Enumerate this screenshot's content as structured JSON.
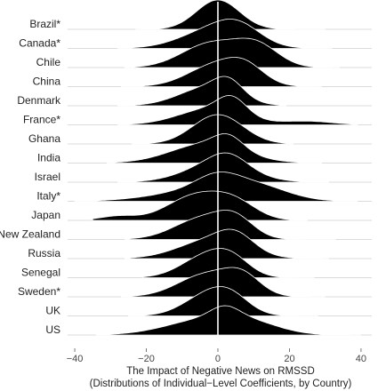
{
  "chart_data": {
    "type": "ridgeline",
    "title": "",
    "xlabel": "The Impact of Negative News on RMSSD",
    "xlabel_line2": "(Distributions of Individual−Level Coefficients, by Country)",
    "ylabel": "",
    "xlim": [
      -42,
      43
    ],
    "x_ticks": [
      -40,
      -20,
      0,
      20,
      40
    ],
    "x_tick_labels": [
      "−40",
      "−20",
      "0",
      "20",
      "40"
    ],
    "reference_line_x": 0,
    "grid": false,
    "fill_color": "#000000",
    "series": [
      {
        "name": "Brazil*",
        "components": [
          [
            0,
            6,
            1.0
          ]
        ],
        "range": [
          -23,
          30
        ]
      },
      {
        "name": "Canada*",
        "components": [
          [
            -1,
            9,
            0.55
          ],
          [
            6,
            6,
            0.4
          ]
        ],
        "range": [
          -28,
          32
        ]
      },
      {
        "name": "Chile",
        "components": [
          [
            -2,
            8,
            0.7
          ],
          [
            11,
            6,
            0.6
          ]
        ],
        "range": [
          -26,
          34
        ]
      },
      {
        "name": "China",
        "components": [
          [
            0,
            8,
            0.8
          ],
          [
            8,
            5,
            0.45
          ]
        ],
        "range": [
          -27,
          29
        ]
      },
      {
        "name": "Denmark",
        "components": [
          [
            -3,
            8,
            0.6
          ],
          [
            3,
            4,
            0.5
          ]
        ],
        "range": [
          -28,
          19
        ]
      },
      {
        "name": "France*",
        "components": [
          [
            -2,
            9,
            0.45
          ],
          [
            4,
            4,
            0.45
          ],
          [
            25,
            7,
            0.1
          ]
        ],
        "range": [
          -28,
          39
        ]
      },
      {
        "name": "Ghana",
        "components": [
          [
            0,
            7,
            0.9
          ]
        ],
        "range": [
          -24,
          21
        ]
      },
      {
        "name": "India",
        "components": [
          [
            -3,
            10,
            0.55
          ],
          [
            3,
            4,
            0.35
          ]
        ],
        "range": [
          -31,
          29
        ]
      },
      {
        "name": "Israel",
        "components": [
          [
            0,
            9,
            0.6
          ],
          [
            3,
            5,
            0.35
          ]
        ],
        "range": [
          -28,
          31
        ]
      },
      {
        "name": "Italy*",
        "components": [
          [
            -3,
            13,
            0.35
          ],
          [
            0,
            6,
            0.4
          ],
          [
            12,
            8,
            0.3
          ]
        ],
        "range": [
          -40,
          39
        ]
      },
      {
        "name": "Japan",
        "components": [
          [
            -6,
            8,
            0.6
          ],
          [
            5,
            6,
            0.35
          ],
          [
            -28,
            5,
            0.1
          ]
        ],
        "range": [
          -35,
          25
        ]
      },
      {
        "name": "New Zealand",
        "components": [
          [
            -4,
            8,
            0.55
          ],
          [
            5,
            5,
            0.4
          ]
        ],
        "range": [
          -26,
          33
        ]
      },
      {
        "name": "Russia",
        "components": [
          [
            -2,
            9,
            0.5
          ],
          [
            5,
            5,
            0.4
          ]
        ],
        "range": [
          -26,
          31
        ]
      },
      {
        "name": "Senegal",
        "components": [
          [
            -3,
            7,
            0.6
          ],
          [
            4,
            5,
            0.35
          ]
        ],
        "range": [
          -21,
          27
        ]
      },
      {
        "name": "Sweden*",
        "components": [
          [
            -3,
            8,
            0.55
          ],
          [
            7,
            5,
            0.4
          ]
        ],
        "range": [
          -27,
          30
        ]
      },
      {
        "name": "UK",
        "components": [
          [
            -2,
            7,
            0.65
          ],
          [
            4,
            5,
            0.3
          ]
        ],
        "range": [
          -25,
          28
        ]
      },
      {
        "name": "US",
        "components": [
          [
            -3,
            11,
            0.3
          ],
          [
            2,
            4,
            0.2
          ],
          [
            10,
            8,
            0.15
          ]
        ],
        "range": [
          -34,
          40
        ]
      }
    ]
  }
}
